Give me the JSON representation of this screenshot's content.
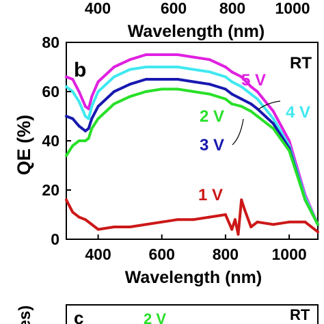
{
  "top_panel": {
    "x_ticks": [
      "400",
      "600",
      "800",
      "1000"
    ],
    "xlabel": "Wavelength (nm)"
  },
  "chart_data": {
    "type": "line",
    "panel_label": "b",
    "condition_label": "RT",
    "xlabel": "Wavelength (nm)",
    "ylabel": "QE (%)",
    "xlim": [
      300,
      1090
    ],
    "ylim": [
      0,
      80
    ],
    "x_ticks": [
      400,
      600,
      800,
      1000
    ],
    "y_ticks": [
      0,
      20,
      40,
      60,
      80
    ],
    "grid": false,
    "series": [
      {
        "name": "5 V",
        "color": "#e020e0",
        "x": [
          300,
          320,
          340,
          360,
          370,
          380,
          400,
          450,
          500,
          550,
          600,
          650,
          700,
          750,
          800,
          820,
          850,
          880,
          900,
          950,
          1000,
          1050,
          1090
        ],
        "y": [
          66,
          65,
          60,
          54,
          53,
          58,
          64,
          70,
          73,
          75,
          75,
          75,
          74,
          73,
          70,
          68,
          66,
          62,
          60,
          52,
          40,
          18,
          6
        ]
      },
      {
        "name": "4 V",
        "color": "#40e8f0",
        "x": [
          300,
          320,
          340,
          360,
          370,
          380,
          400,
          450,
          500,
          550,
          600,
          650,
          700,
          750,
          800,
          820,
          850,
          880,
          900,
          950,
          1000,
          1050,
          1090
        ],
        "y": [
          62,
          60,
          56,
          50,
          49,
          54,
          60,
          66,
          69,
          70,
          70,
          70,
          69,
          68,
          66,
          64,
          62,
          59,
          57,
          49,
          38,
          17,
          6
        ]
      },
      {
        "name": "3 V",
        "color": "#1818b0",
        "x": [
          300,
          320,
          340,
          360,
          370,
          380,
          400,
          450,
          500,
          550,
          600,
          650,
          700,
          750,
          800,
          820,
          850,
          880,
          900,
          950,
          1000,
          1050,
          1090
        ],
        "y": [
          50,
          49,
          46,
          44,
          45,
          49,
          54,
          60,
          63,
          65,
          65,
          65,
          64,
          63,
          61,
          59,
          57,
          55,
          53,
          47,
          37,
          16,
          6
        ]
      },
      {
        "name": "2 V",
        "color": "#28e028",
        "x": [
          300,
          320,
          340,
          360,
          370,
          380,
          400,
          450,
          500,
          550,
          600,
          650,
          700,
          750,
          800,
          820,
          850,
          880,
          900,
          950,
          1000,
          1050,
          1090
        ],
        "y": [
          34,
          38,
          40,
          40,
          41,
          45,
          49,
          55,
          58,
          60,
          61,
          61,
          60,
          59,
          57,
          55,
          54,
          52,
          50,
          45,
          36,
          16,
          6
        ]
      },
      {
        "name": "1 V",
        "color": "#cc1818",
        "x": [
          300,
          320,
          340,
          360,
          380,
          400,
          450,
          500,
          550,
          600,
          650,
          700,
          750,
          800,
          820,
          830,
          840,
          850,
          860,
          880,
          900,
          950,
          1000,
          1050,
          1090
        ],
        "y": [
          16,
          11,
          9,
          8,
          6,
          4,
          5,
          5,
          6,
          7,
          8,
          8,
          9,
          10,
          4,
          8,
          2,
          16,
          12,
          5,
          7,
          6,
          7,
          7,
          3
        ]
      }
    ]
  },
  "bottom_panel": {
    "panel_label": "c",
    "condition_label": "RT",
    "series_label": "2 V",
    "ylabel_fragment": "es)"
  }
}
